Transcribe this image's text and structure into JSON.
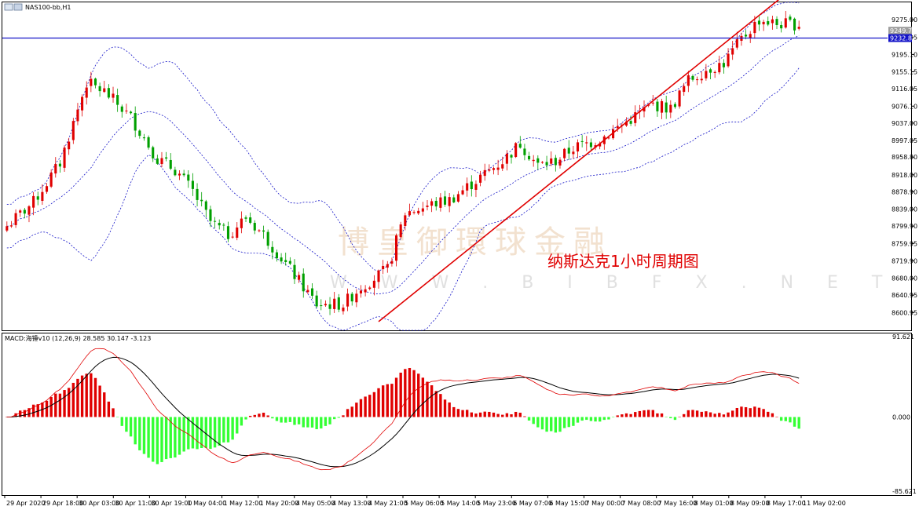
{
  "chart_data": [
    {
      "type": "candlestick",
      "symbol_label": "NAS100-bb,H1",
      "annotation": "纳斯达克1小时周期图",
      "watermark": "博皇御環球金融",
      "watermark_url": "W W W . B I B F X . N E T",
      "ylim": [
        8560,
        9315
      ],
      "y_ticks": [
        9275.0,
        9235.05,
        9195.1,
        9155.15,
        9116.05,
        9076.1,
        9037.0,
        8997.05,
        8958.8,
        8918.0,
        8878.9,
        8839.0,
        8799.9,
        8759.95,
        8719.9,
        8680.0,
        8640.95,
        8600.95
      ],
      "price_labels": [
        {
          "value": 9249.7,
          "label": "9249.70",
          "color": "#9e9e9e"
        },
        {
          "value": 9232.81,
          "label": "9232.81",
          "color": "#1414c8"
        }
      ],
      "horizontal_line": {
        "value": 9232.81,
        "color": "#1414c8"
      },
      "x_labels": [
        "29 Apr 2020",
        "29 Apr 18:00",
        "30 Apr 03:00",
        "30 Apr 11:00",
        "30 Apr 19:00",
        "1 May 04:00",
        "1 May 12:00",
        "1 May 20:00",
        "4 May 05:00",
        "4 May 13:00",
        "4 May 21:00",
        "5 May 06:00",
        "5 May 14:00",
        "5 May 23:00",
        "6 May 07:00",
        "6 May 15:00",
        "7 May 00:00",
        "7 May 08:00",
        "7 May 16:00",
        "8 May 01:00",
        "8 May 09:00",
        "8 May 17:00",
        "11 May 02:00"
      ],
      "bands_color": "#1414c8",
      "trendline": {
        "from_bar": 0,
        "from_value": 8560,
        "to_bar": 170,
        "to_value": 9285,
        "color": "#e00000",
        "anchors": [
          {
            "bar": 84,
            "value": 8580
          },
          {
            "bar": 170,
            "value": 9285
          }
        ]
      },
      "candles": {
        "up_color": "#e00000",
        "down_color": "#00a000"
      }
    },
    {
      "type": "macd",
      "label": "MACD:海锤v10 (12,26,9) 28.585 30.147 -3.123",
      "ylim": [
        -85.621,
        91.621
      ],
      "y_ticks": [
        91.621,
        0.0,
        -85.621
      ],
      "y_tick_labels": [
        "91.621",
        "0.000",
        "-85.621"
      ],
      "hist_pos_color": "#e00000",
      "hist_neg_color": "#33ff33",
      "signal_color": "#e00000",
      "macd_color": "#000000"
    }
  ]
}
